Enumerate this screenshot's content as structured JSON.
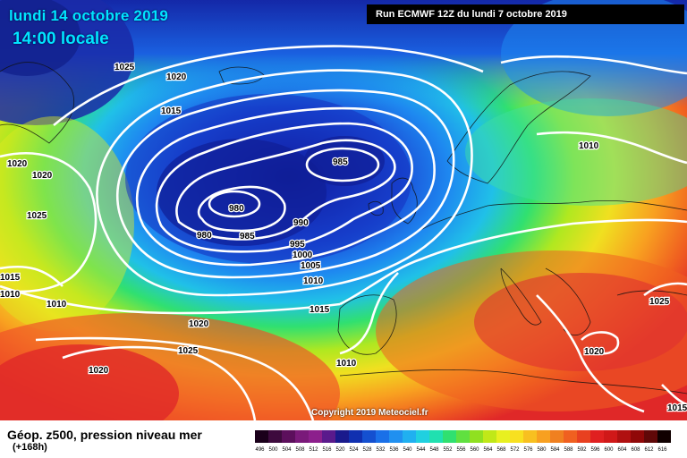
{
  "header": {
    "date": "lundi 14 octobre 2019",
    "time": "14:00 locale",
    "run": "Run ECMWF 12Z du lundi 7 octobre 2019"
  },
  "footer": {
    "title": "Géop. z500, pression niveau mer",
    "lead": "(+168h)",
    "copyright": "Copyright 2019 Meteociel.fr"
  },
  "isobar_labels": [
    "1025",
    "1020",
    "1015",
    "1020",
    "1020",
    "1025",
    "1015",
    "1010",
    "1010",
    "985",
    "980",
    "980",
    "985",
    "990",
    "995",
    "1000",
    "1005",
    "1010",
    "1015",
    "1020",
    "1025",
    "1020",
    "1010",
    "1010",
    "1025",
    "1020",
    "1015"
  ],
  "scale": {
    "values": [
      "496",
      "500",
      "504",
      "508",
      "512",
      "516",
      "520",
      "524",
      "528",
      "532",
      "536",
      "540",
      "544",
      "548",
      "552",
      "556",
      "560",
      "564",
      "568",
      "572",
      "576",
      "580",
      "584",
      "588",
      "592",
      "596",
      "600",
      "604",
      "608",
      "612",
      "616"
    ],
    "colors": [
      "#1a001a",
      "#3d0a3d",
      "#5c0f5c",
      "#7a1a7a",
      "#8c1f8c",
      "#5a1a8c",
      "#1a1a8c",
      "#1030b0",
      "#1450d0",
      "#1a70e8",
      "#2090f0",
      "#20b0f0",
      "#20d0e0",
      "#20e0b0",
      "#30e070",
      "#60e040",
      "#90e020",
      "#c0e818",
      "#e8f020",
      "#f8e020",
      "#f8c020",
      "#f8a020",
      "#f08020",
      "#f06020",
      "#e84020",
      "#e02020",
      "#d01818",
      "#b01010",
      "#900808",
      "#600808",
      "#100000"
    ]
  }
}
